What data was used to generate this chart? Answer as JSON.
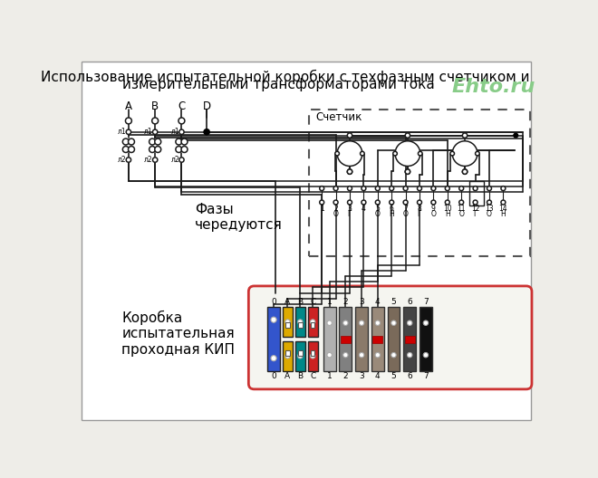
{
  "title_line1": "Использование испытательной коробки с техфазным счетчиком и",
  "title_line2": "измерительными трансформаторами тока",
  "watermark": "Ehto.ru",
  "label_schetik": "Счетчик",
  "label_fazy": "Фазы\nчередуются",
  "label_korobka": "Коробка\nиспытательная\nпроходная КИП",
  "bg_color": "#eeede8",
  "line_color": "#1a1a1a",
  "dashed_box_color": "#555555",
  "kip_box_color": "#cc3333",
  "kip_0_color": "#3355cc",
  "kip_A_color": "#ddaa00",
  "kip_B_color": "#008888",
  "kip_C_color": "#cc2222",
  "kip_num_colors": [
    "#aaaaaa",
    "#777777",
    "#888877",
    "#887766",
    "#998877",
    "#444444",
    "#111111"
  ],
  "title_fontsize": 11,
  "wm_fontsize": 16,
  "small_fs": 6.5
}
